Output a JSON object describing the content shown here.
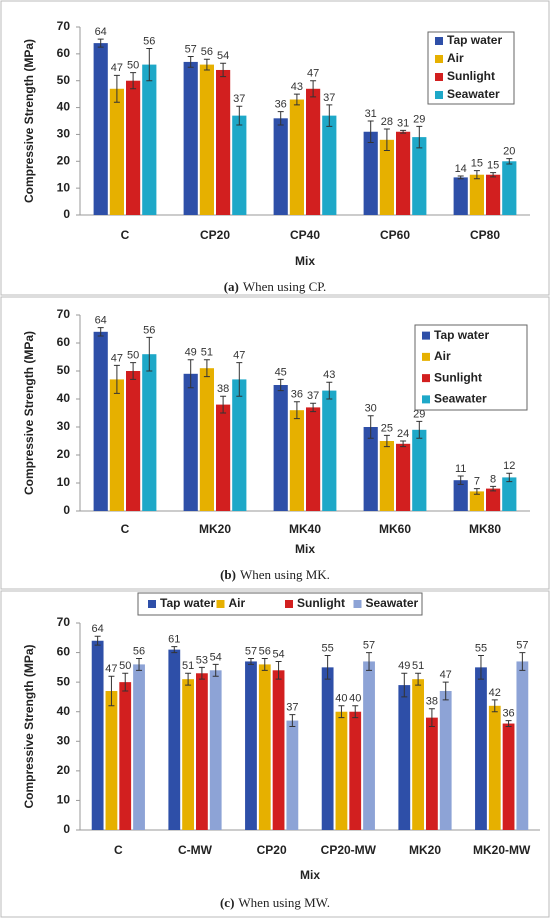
{
  "chart_data": [
    {
      "type": "bar",
      "label": "(a)",
      "caption": "When using CP.",
      "y_label": "Compressive Strength (MPa)",
      "x_label": "Mix",
      "categories": [
        "C",
        "CP20",
        "CP40",
        "CP60",
        "CP80"
      ],
      "ylim": [
        0,
        70
      ],
      "yticks": [
        0,
        10,
        20,
        30,
        40,
        50,
        60,
        70
      ],
      "legend": "upper right",
      "series": [
        {
          "name": "Tap water",
          "color": "#2e4fa8",
          "values": [
            64,
            57,
            36,
            31,
            14
          ],
          "errors": [
            1.5,
            2,
            2.5,
            4,
            0.5
          ]
        },
        {
          "name": "Air",
          "color": "#e6b000",
          "values": [
            47,
            56,
            43,
            28,
            15
          ],
          "errors": [
            5,
            2,
            2,
            4,
            1.5
          ]
        },
        {
          "name": "Sunlight",
          "color": "#d21f1f",
          "values": [
            50,
            54,
            47,
            31,
            15
          ],
          "errors": [
            3,
            2.5,
            3,
            0.5,
            0.8
          ]
        },
        {
          "name": "Seawater",
          "color": "#1ea8c8",
          "values": [
            56,
            37,
            37,
            29,
            20
          ],
          "errors": [
            6,
            3.5,
            4,
            4,
            1
          ]
        }
      ]
    },
    {
      "type": "bar",
      "label": "(b)",
      "caption": "When using MK.",
      "y_label": "Compressive Strength (MPa)",
      "x_label": "Mix",
      "categories": [
        "C",
        "MK20",
        "MK40",
        "MK60",
        "MK80"
      ],
      "ylim": [
        0,
        70
      ],
      "yticks": [
        0,
        10,
        20,
        30,
        40,
        50,
        60,
        70
      ],
      "legend": "upper right",
      "series": [
        {
          "name": "Tap water",
          "color": "#2e4fa8",
          "values": [
            64,
            49,
            45,
            30,
            11
          ],
          "errors": [
            1.5,
            5,
            2,
            4,
            1.5
          ]
        },
        {
          "name": "Air",
          "color": "#e6b000",
          "values": [
            47,
            51,
            36,
            25,
            7
          ],
          "errors": [
            5,
            3,
            3,
            2,
            1
          ]
        },
        {
          "name": "Sunlight",
          "color": "#d21f1f",
          "values": [
            50,
            38,
            37,
            24,
            8
          ],
          "errors": [
            3,
            3,
            1.5,
            1,
            0.8
          ]
        },
        {
          "name": "Seawater",
          "color": "#1ea8c8",
          "values": [
            56,
            47,
            43,
            29,
            12
          ],
          "errors": [
            6,
            6,
            3,
            3,
            1.5
          ]
        }
      ]
    },
    {
      "type": "bar",
      "label": "(c)",
      "caption": "When using MW.",
      "y_label": "Compressive Strength (MPa)",
      "x_label": "Mix",
      "categories": [
        "C",
        "C-MW",
        "CP20",
        "CP20-MW",
        "MK20",
        "MK20-MW"
      ],
      "ylim": [
        0,
        70
      ],
      "yticks": [
        0,
        10,
        20,
        30,
        40,
        50,
        60,
        70
      ],
      "legend": "top",
      "series": [
        {
          "name": "Tap water",
          "color": "#2e4fa8",
          "values": [
            64,
            61,
            57,
            55,
            49,
            55
          ],
          "errors": [
            1.5,
            1,
            1,
            4,
            4,
            4
          ]
        },
        {
          "name": "Air",
          "color": "#e6b000",
          "values": [
            47,
            51,
            56,
            40,
            51,
            42
          ],
          "errors": [
            5,
            2,
            2,
            2,
            2,
            2
          ]
        },
        {
          "name": "Sunlight",
          "color": "#d21f1f",
          "values": [
            50,
            53,
            54,
            40,
            38,
            36
          ],
          "errors": [
            3,
            2,
            3,
            2,
            3,
            1
          ]
        },
        {
          "name": "Seawater",
          "color": "#8da3d6",
          "values": [
            56,
            54,
            37,
            57,
            47,
            57
          ],
          "errors": [
            2,
            2,
            2,
            3,
            3,
            3
          ]
        }
      ]
    }
  ]
}
